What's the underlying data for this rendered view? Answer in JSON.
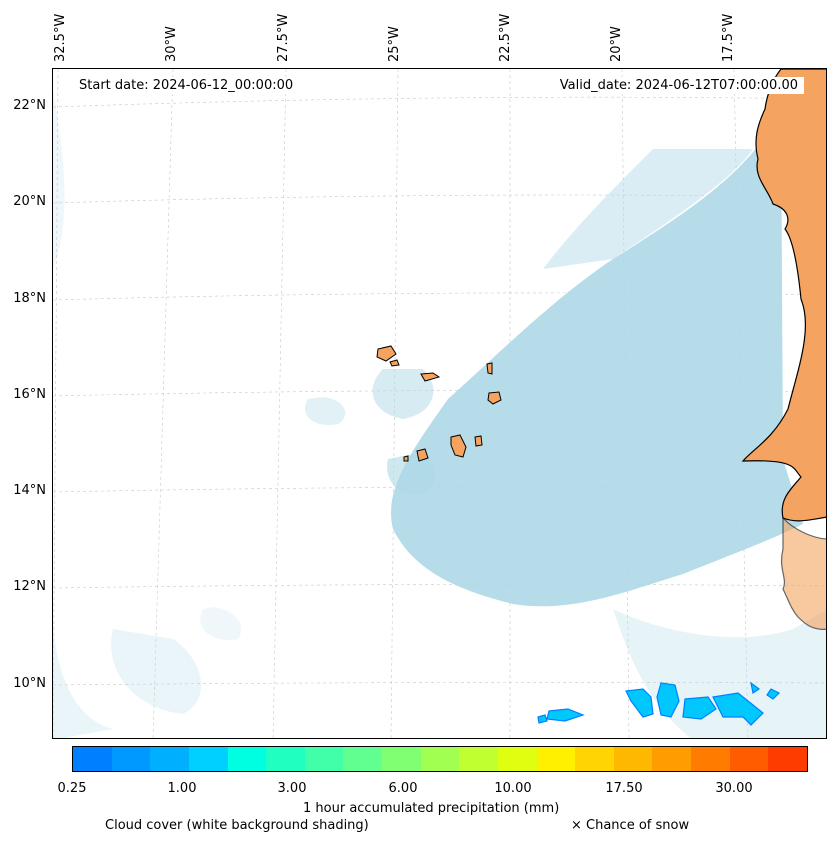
{
  "map": {
    "start_date": "Start date: 2024-06-12_00:00:00",
    "valid_date": "Valid_date: 2024-06-12T07:00:00.00",
    "lon_labels": [
      "32.5°W",
      "30°W",
      "27.5°W",
      "25°W",
      "22.5°W",
      "20°W",
      "17.5°W"
    ],
    "lat_labels": [
      "22°N",
      "20°N",
      "18°N",
      "16°N",
      "14°N",
      "12°N",
      "10°N"
    ],
    "colors": {
      "land": "#f4a460",
      "cloud": "#add8e6",
      "coast": "#000000"
    }
  },
  "legend": {
    "colorbar_colors": [
      "#0080ff",
      "#0099ff",
      "#00b0ff",
      "#00d0ff",
      "#00ffe0",
      "#20ffc0",
      "#40ffa8",
      "#60ff90",
      "#80ff70",
      "#a0ff50",
      "#c0ff30",
      "#e0ff10",
      "#fff000",
      "#ffd400",
      "#ffb800",
      "#ff9c00",
      "#ff7c00",
      "#ff5c00",
      "#ff3c00"
    ],
    "tick_labels": [
      "0.25",
      "1.00",
      "3.00",
      "6.00",
      "10.00",
      "17.50",
      "30.00"
    ],
    "precip_label": "1 hour accumulated precipitation (mm)",
    "cloud_label": "Cloud cover (white background shading)",
    "snow_label": "× Chance of snow"
  }
}
